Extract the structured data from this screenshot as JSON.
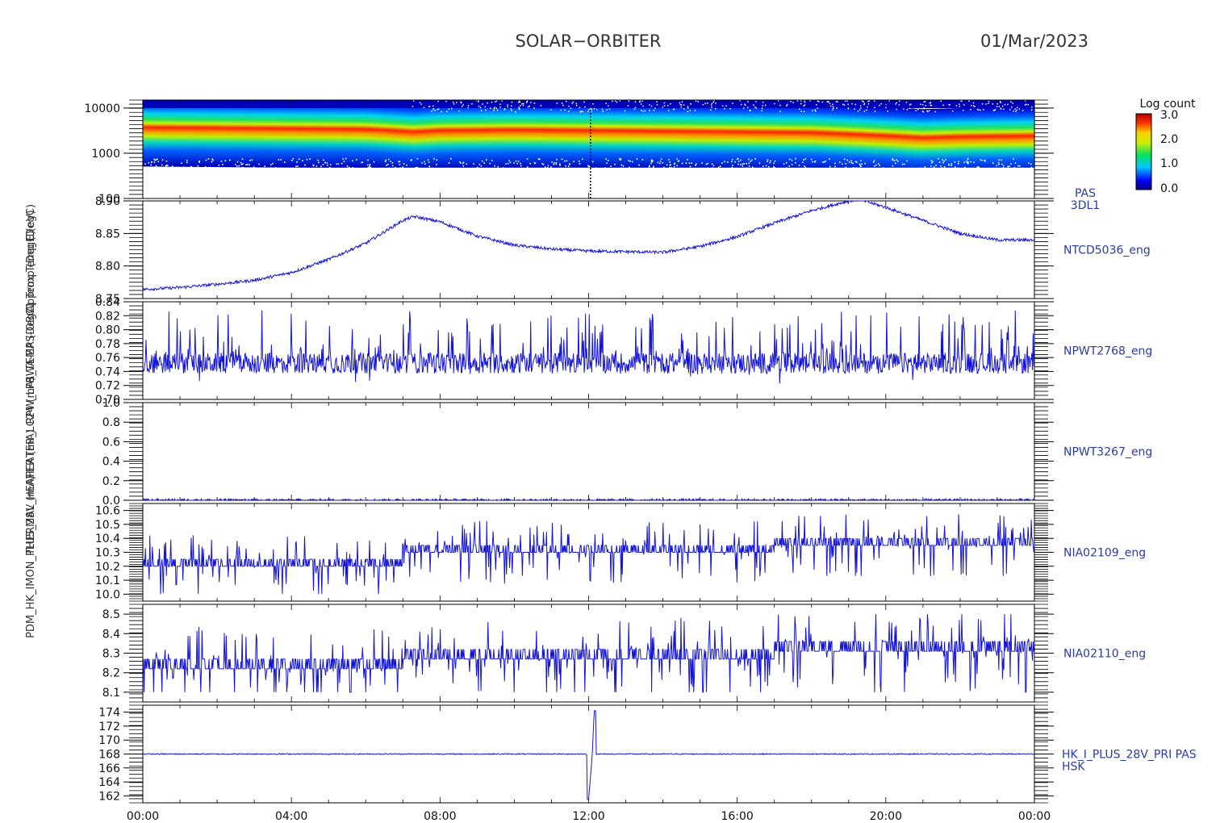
{
  "header": {
    "mission": "SOLAR−ORBITER",
    "date": "01/Mar/2023"
  },
  "colorbar": {
    "title": "Log count",
    "ticks": [
      "3.0",
      "2.0",
      "1.0",
      "0.0"
    ],
    "range": [
      0.0,
      3.0
    ]
  },
  "x_axis": {
    "ticks": [
      "00:00",
      "04:00",
      "08:00",
      "12:00",
      "16:00",
      "20:00",
      "00:00"
    ],
    "range_hours": [
      0,
      24
    ]
  },
  "overlapping_y_labels": [
    "E (eV)",
    "Approx Temp (DegC)",
    "SWA-EAS-OBC1 Temp (DegC)",
    "RPW_LFR_TEMP (DegC)",
    "HEATER_LC24 (mA)",
    "THERMAL_HEATER (mA)",
    "PDM_HK_IMON_PLUS_28V (mA)"
  ],
  "chart_data": [
    {
      "type": "heatmap",
      "panel": "PAS 3DL1",
      "label_lines": [
        "PAS",
        "3DL1"
      ],
      "y_scale": "log",
      "ylim": [
        100,
        15000
      ],
      "y_ticks": [
        "10000",
        "1000",
        "100"
      ],
      "x_range_hours": [
        0,
        24
      ],
      "peak_energy_track": {
        "x": [
          0,
          2,
          4,
          6,
          7.3,
          8,
          10,
          12,
          14,
          16,
          18,
          20,
          21,
          22,
          24
        ],
        "y": [
          3200,
          3100,
          3000,
          2900,
          2500,
          2700,
          2800,
          2700,
          2600,
          2500,
          2400,
          2000,
          1800,
          1900,
          2000
        ]
      },
      "colorscale_log_count": [
        0.0,
        3.0
      ]
    },
    {
      "type": "line",
      "series_label": "NTCD5036_eng",
      "ylim": [
        8.75,
        8.9
      ],
      "y_ticks": [
        "8.90",
        "8.85",
        "8.80",
        "8.75"
      ],
      "x": [
        0,
        1,
        2,
        3,
        4,
        5,
        6,
        7,
        7.3,
        8,
        9,
        10,
        11,
        12,
        13,
        14,
        15,
        16,
        17,
        18,
        19,
        19.3,
        20,
        21,
        22,
        23,
        24
      ],
      "y": [
        8.764,
        8.767,
        8.772,
        8.778,
        8.79,
        8.81,
        8.835,
        8.87,
        8.876,
        8.868,
        8.846,
        8.832,
        8.826,
        8.823,
        8.822,
        8.821,
        8.83,
        8.845,
        8.866,
        8.885,
        8.9,
        8.902,
        8.89,
        8.87,
        8.85,
        8.84,
        8.84
      ]
    },
    {
      "type": "line",
      "series_label": "NPWT2768_eng",
      "ylim": [
        0.7,
        0.84
      ],
      "y_ticks": [
        "0.84",
        "0.82",
        "0.80",
        "0.78",
        "0.76",
        "0.74",
        "0.72",
        "0.70"
      ],
      "baseline": 0.752,
      "noise_range": [
        0.71,
        0.83
      ]
    },
    {
      "type": "line",
      "series_label": "NPWT3267_eng",
      "ylim": [
        0.0,
        1.0
      ],
      "y_ticks": [
        "1.0",
        "0.8",
        "0.6",
        "0.4",
        "0.2",
        "0.0"
      ],
      "x": [
        0,
        24
      ],
      "y": [
        0.0,
        0.0
      ]
    },
    {
      "type": "line",
      "series_label": "NIA02109_eng",
      "ylim": [
        9.95,
        10.65
      ],
      "y_ticks": [
        "10.6",
        "10.5",
        "10.4",
        "10.3",
        "10.2",
        "10.1",
        "10.0"
      ],
      "levels": [
        10.2,
        10.3,
        10.35
      ],
      "noise_range": [
        10.0,
        10.6
      ]
    },
    {
      "type": "line",
      "series_label": "NIA02110_eng",
      "ylim": [
        8.05,
        8.55
      ],
      "y_ticks": [
        "8.5",
        "8.4",
        "8.3",
        "8.2",
        "8.1"
      ],
      "levels": [
        8.22,
        8.27,
        8.31
      ],
      "noise_range": [
        8.1,
        8.5
      ]
    },
    {
      "type": "line",
      "series_label_lines": [
        "HK_I_PLUS_28V_PRI PAS",
        "HSK"
      ],
      "ylim": [
        161,
        175
      ],
      "y_ticks": [
        "174",
        "172",
        "170",
        "168",
        "166",
        "164",
        "162"
      ],
      "baseline": 168.0,
      "spike": {
        "x_hours": [
          12.0,
          12.1,
          12.15
        ],
        "y": [
          161.5,
          168.0,
          174.2
        ]
      }
    }
  ]
}
